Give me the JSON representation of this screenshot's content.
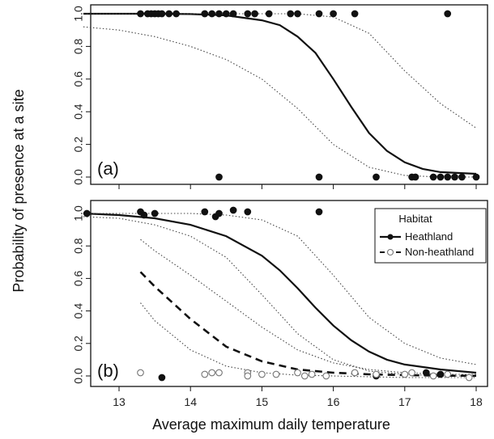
{
  "chart_data": [
    {
      "type": "scatter",
      "panel_label": "(a)",
      "xlabel": "Average maximum daily temperature",
      "ylabel": "Probability of presence at a site",
      "xlim": [
        12.5,
        18
      ],
      "ylim": [
        0,
        1
      ],
      "yticks": [
        "0.0",
        "0.2",
        "0.4",
        "0.6",
        "0.8",
        "1.0"
      ],
      "xticks": [],
      "grid": false,
      "series": [
        {
          "kind": "points",
          "style": "filled",
          "x": [
            13.3,
            13.4,
            13.45,
            13.5,
            13.55,
            13.6,
            13.7,
            13.8,
            14.2,
            14.3,
            14.4,
            14.5,
            14.6,
            14.8,
            14.9,
            15.1,
            15.4,
            15.5,
            15.8,
            16.0,
            16.3,
            17.6
          ],
          "y": [
            1,
            1,
            1,
            1,
            1,
            1,
            1,
            1,
            1,
            1,
            1,
            1,
            1,
            1,
            1,
            1,
            1,
            1,
            1,
            1,
            1,
            1
          ]
        },
        {
          "kind": "points",
          "style": "filled",
          "x": [
            14.4,
            15.8,
            16.6,
            17.1,
            17.15,
            17.4,
            17.5,
            17.6,
            17.7,
            17.8,
            18.0
          ],
          "y": [
            0,
            0,
            0,
            0,
            0,
            0,
            0,
            0,
            0,
            0,
            0
          ]
        },
        {
          "kind": "line",
          "style": "solid",
          "x": [
            12.5,
            13,
            13.5,
            14,
            14.5,
            15,
            15.25,
            15.5,
            15.75,
            16,
            16.25,
            16.5,
            16.75,
            17,
            17.25,
            17.5,
            18
          ],
          "y": [
            1,
            1,
            1,
            0.998,
            0.99,
            0.96,
            0.93,
            0.86,
            0.76,
            0.6,
            0.43,
            0.27,
            0.16,
            0.09,
            0.05,
            0.03,
            0.02
          ]
        },
        {
          "kind": "line",
          "style": "dotted",
          "x": [
            12.5,
            13,
            13.5,
            14,
            14.5,
            15,
            15.5,
            16,
            16.5,
            17,
            17.5,
            18
          ],
          "y": [
            1,
            1,
            1,
            1,
            1,
            1,
            1,
            0.98,
            0.88,
            0.65,
            0.45,
            0.3
          ]
        },
        {
          "kind": "line",
          "style": "dotted",
          "x": [
            12.5,
            13,
            13.5,
            14,
            14.5,
            15,
            15.5,
            16,
            16.5,
            17,
            17.5,
            18
          ],
          "y": [
            0.92,
            0.9,
            0.86,
            0.8,
            0.72,
            0.6,
            0.42,
            0.2,
            0.06,
            0.01,
            0,
            0
          ]
        }
      ]
    },
    {
      "type": "scatter",
      "panel_label": "(b)",
      "xlim": [
        12.5,
        18
      ],
      "ylim": [
        0,
        1
      ],
      "yticks": [
        "0.0",
        "0.2",
        "0.4",
        "0.6",
        "0.8",
        "1.0"
      ],
      "xticks": [
        "13",
        "14",
        "15",
        "16",
        "17",
        "18"
      ],
      "grid": false,
      "legend": {
        "position": "top-right",
        "title": "Habitat",
        "entries": [
          "Heathland",
          "Non-heathland"
        ]
      },
      "series": [
        {
          "kind": "points",
          "style": "filled",
          "x": [
            12.55,
            13.3,
            13.35,
            13.5,
            14.2,
            14.35,
            14.4,
            14.6,
            14.8,
            15.8
          ],
          "y": [
            1,
            1.01,
            0.99,
            1,
            1.01,
            0.98,
            1,
            1.02,
            1.01,
            1.01
          ]
        },
        {
          "kind": "points",
          "style": "filled",
          "x": [
            13.6,
            16.6,
            17.3,
            17.5
          ],
          "y": [
            -0.01,
            0,
            0.02,
            0.01
          ]
        },
        {
          "kind": "points",
          "style": "open",
          "x": [
            13.3,
            14.2,
            14.3,
            14.4,
            14.8,
            14.8,
            15.0,
            15.2,
            15.5,
            15.6,
            15.7,
            15.9,
            16.3,
            16.6,
            17.0,
            17.1,
            17.4,
            17.6,
            17.9
          ],
          "y": [
            0.02,
            0.01,
            0.02,
            0.02,
            0.02,
            0,
            0.01,
            0.01,
            0.02,
            0,
            0.01,
            0,
            0.02,
            0.01,
            0.01,
            0.02,
            0,
            0.01,
            -0.01
          ]
        },
        {
          "kind": "line",
          "style": "solid",
          "x": [
            12.5,
            13,
            13.5,
            14,
            14.5,
            15,
            15.25,
            15.5,
            15.75,
            16,
            16.25,
            16.5,
            16.75,
            17,
            17.5,
            18
          ],
          "y": [
            1,
            0.99,
            0.97,
            0.93,
            0.86,
            0.74,
            0.65,
            0.54,
            0.42,
            0.31,
            0.22,
            0.15,
            0.1,
            0.07,
            0.04,
            0.02
          ]
        },
        {
          "kind": "line",
          "style": "dotted",
          "x": [
            12.5,
            13,
            13.5,
            14,
            14.5,
            15,
            15.5,
            16,
            16.5,
            17,
            17.5,
            18
          ],
          "y": [
            1,
            1,
            1,
            1,
            0.99,
            0.96,
            0.86,
            0.62,
            0.36,
            0.2,
            0.11,
            0.07
          ]
        },
        {
          "kind": "line",
          "style": "dotted",
          "x": [
            12.5,
            13,
            13.5,
            14,
            14.5,
            15,
            15.5,
            16,
            16.5,
            17,
            17.5,
            18
          ],
          "y": [
            0.98,
            0.97,
            0.93,
            0.86,
            0.73,
            0.5,
            0.26,
            0.1,
            0.03,
            0.01,
            0,
            0
          ]
        },
        {
          "kind": "line",
          "style": "dashed",
          "x": [
            13.3,
            13.5,
            14,
            14.5,
            15,
            15.5,
            16,
            16.5,
            17,
            17.5,
            18
          ],
          "y": [
            0.64,
            0.55,
            0.35,
            0.18,
            0.09,
            0.04,
            0.02,
            0.01,
            0.005,
            0.002,
            0.001
          ]
        },
        {
          "kind": "line",
          "style": "dotted",
          "x": [
            13.3,
            13.5,
            14,
            14.5,
            15,
            15.5,
            16,
            16.5,
            17,
            17.5,
            18
          ],
          "y": [
            0.84,
            0.77,
            0.62,
            0.46,
            0.3,
            0.16,
            0.08,
            0.04,
            0.02,
            0.01,
            0.01
          ]
        },
        {
          "kind": "line",
          "style": "dotted",
          "x": [
            13.3,
            13.5,
            14,
            14.5,
            15,
            15.5,
            16,
            16.5,
            17,
            17.5,
            18
          ],
          "y": [
            0.45,
            0.34,
            0.16,
            0.06,
            0.02,
            0.005,
            0,
            -0.005,
            -0.01,
            -0.01,
            -0.01
          ]
        }
      ]
    }
  ]
}
